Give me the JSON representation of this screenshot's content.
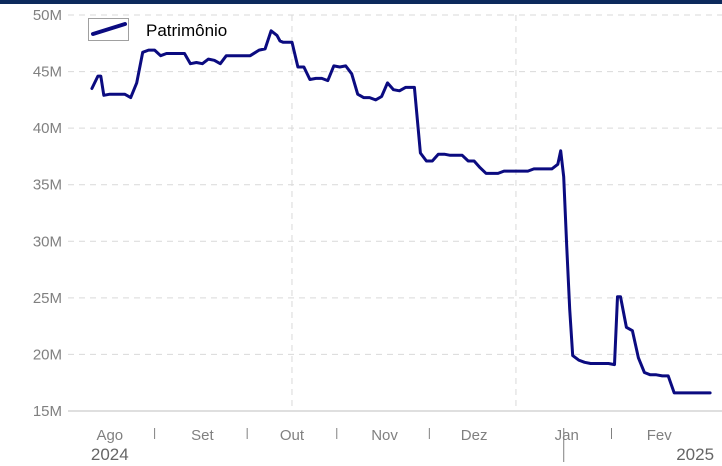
{
  "colors": {
    "top_bar": "#0d2a5c",
    "series": "#0b0b80",
    "grid": "#d9d9d9",
    "axis": "#bfbfbf",
    "tick_text": "#808080"
  },
  "chart_data": {
    "type": "line",
    "title": "",
    "xlabel": "",
    "ylabel": "",
    "legend": {
      "position": "top-left",
      "entries": [
        "Patrimônio"
      ]
    },
    "grid": true,
    "ylim": [
      15000000,
      50000000
    ],
    "y_ticks": [
      {
        "value": 15000000,
        "label": "15M"
      },
      {
        "value": 20000000,
        "label": "20M"
      },
      {
        "value": 25000000,
        "label": "25M"
      },
      {
        "value": 30000000,
        "label": "30M"
      },
      {
        "value": 35000000,
        "label": "35M"
      },
      {
        "value": 40000000,
        "label": "40M"
      },
      {
        "value": 45000000,
        "label": "45M"
      },
      {
        "value": 50000000,
        "label": "50M"
      }
    ],
    "xlim": [
      "2024-07-18",
      "2025-02-22"
    ],
    "x_month_labels": [
      {
        "date": "2024-08-01",
        "label": "Ago"
      },
      {
        "date": "2024-09-01",
        "label": "Set"
      },
      {
        "date": "2024-10-01",
        "label": "Out"
      },
      {
        "date": "2024-11-01",
        "label": "Nov"
      },
      {
        "date": "2024-12-01",
        "label": "Dez"
      },
      {
        "date": "2025-01-01",
        "label": "Jan"
      },
      {
        "date": "2025-02-01",
        "label": "Fev"
      }
    ],
    "x_minor_ticks": [
      "2024-08-16",
      "2024-09-16",
      "2024-10-16",
      "2024-11-16",
      "2025-01-16"
    ],
    "x_gridlines": [
      "2024-10-01",
      "2024-12-15"
    ],
    "year_divider": "2024-12-31",
    "x_year_labels": [
      {
        "date": "2024-08-01",
        "label": "2024"
      },
      {
        "date": "2025-02-13",
        "label": "2025"
      }
    ],
    "series": [
      {
        "name": "Patrimônio",
        "x": [
          "2024-07-26",
          "2024-07-28",
          "2024-07-29",
          "2024-07-30",
          "2024-08-01",
          "2024-08-04",
          "2024-08-06",
          "2024-08-08",
          "2024-08-10",
          "2024-08-12",
          "2024-08-14",
          "2024-08-16",
          "2024-08-18",
          "2024-08-20",
          "2024-08-22",
          "2024-08-24",
          "2024-08-26",
          "2024-08-28",
          "2024-08-30",
          "2024-09-01",
          "2024-09-03",
          "2024-09-05",
          "2024-09-07",
          "2024-09-09",
          "2024-09-11",
          "2024-09-13",
          "2024-09-15",
          "2024-09-17",
          "2024-09-20",
          "2024-09-22",
          "2024-09-24",
          "2024-09-26",
          "2024-09-27",
          "2024-09-28",
          "2024-10-01",
          "2024-10-03",
          "2024-10-05",
          "2024-10-07",
          "2024-10-09",
          "2024-10-11",
          "2024-10-13",
          "2024-10-15",
          "2024-10-17",
          "2024-10-19",
          "2024-10-21",
          "2024-10-23",
          "2024-10-25",
          "2024-10-27",
          "2024-10-29",
          "2024-10-31",
          "2024-11-02",
          "2024-11-04",
          "2024-11-06",
          "2024-11-08",
          "2024-11-09",
          "2024-11-11",
          "2024-11-13",
          "2024-11-15",
          "2024-11-16",
          "2024-11-17",
          "2024-11-19",
          "2024-11-21",
          "2024-11-23",
          "2024-11-25",
          "2024-11-27",
          "2024-11-29",
          "2024-12-01",
          "2024-12-03",
          "2024-12-05",
          "2024-12-07",
          "2024-12-09",
          "2024-12-11",
          "2024-12-13",
          "2024-12-15",
          "2024-12-17",
          "2024-12-19",
          "2024-12-21",
          "2024-12-23",
          "2024-12-25",
          "2024-12-27",
          "2024-12-29",
          "2024-12-30",
          "2024-12-31",
          "2025-01-01",
          "2025-01-02",
          "2025-01-03",
          "2025-01-05",
          "2025-01-07",
          "2025-01-09",
          "2025-01-11",
          "2025-01-13",
          "2025-01-15",
          "2025-01-17",
          "2025-01-18",
          "2025-01-19",
          "2025-01-21",
          "2025-01-23",
          "2025-01-25",
          "2025-01-27",
          "2025-01-29",
          "2025-01-31",
          "2025-02-02",
          "2025-02-04",
          "2025-02-06",
          "2025-02-08",
          "2025-02-10",
          "2025-02-12",
          "2025-02-14",
          "2025-02-16",
          "2025-02-18"
        ],
        "y": [
          43500000,
          44600000,
          44600000,
          42900000,
          43000000,
          43000000,
          43000000,
          42700000,
          44000000,
          46700000,
          46900000,
          46900000,
          46400000,
          46600000,
          46600000,
          46600000,
          46600000,
          45700000,
          45800000,
          45700000,
          46100000,
          46000000,
          45700000,
          46400000,
          46400000,
          46400000,
          46400000,
          46400000,
          46900000,
          47000000,
          48600000,
          48200000,
          47700000,
          47600000,
          47600000,
          45400000,
          45400000,
          44300000,
          44400000,
          44400000,
          44200000,
          45500000,
          45400000,
          45500000,
          44800000,
          43000000,
          42700000,
          42700000,
          42500000,
          42800000,
          44000000,
          43400000,
          43300000,
          43600000,
          43600000,
          43600000,
          37800000,
          37100000,
          37100000,
          37100000,
          37700000,
          37700000,
          37600000,
          37600000,
          37600000,
          37100000,
          37100000,
          36500000,
          36000000,
          36000000,
          36000000,
          36200000,
          36200000,
          36200000,
          36200000,
          36200000,
          36400000,
          36400000,
          36400000,
          36400000,
          36800000,
          38000000,
          35700000,
          29600000,
          24000000,
          19900000,
          19500000,
          19300000,
          19200000,
          19200000,
          19200000,
          19200000,
          19100000,
          25100000,
          25100000,
          22400000,
          22100000,
          19700000,
          18400000,
          18200000,
          18200000,
          18100000,
          18100000,
          16600000,
          16600000,
          16600000,
          16600000,
          16600000,
          16600000,
          16600000
        ]
      }
    ]
  }
}
